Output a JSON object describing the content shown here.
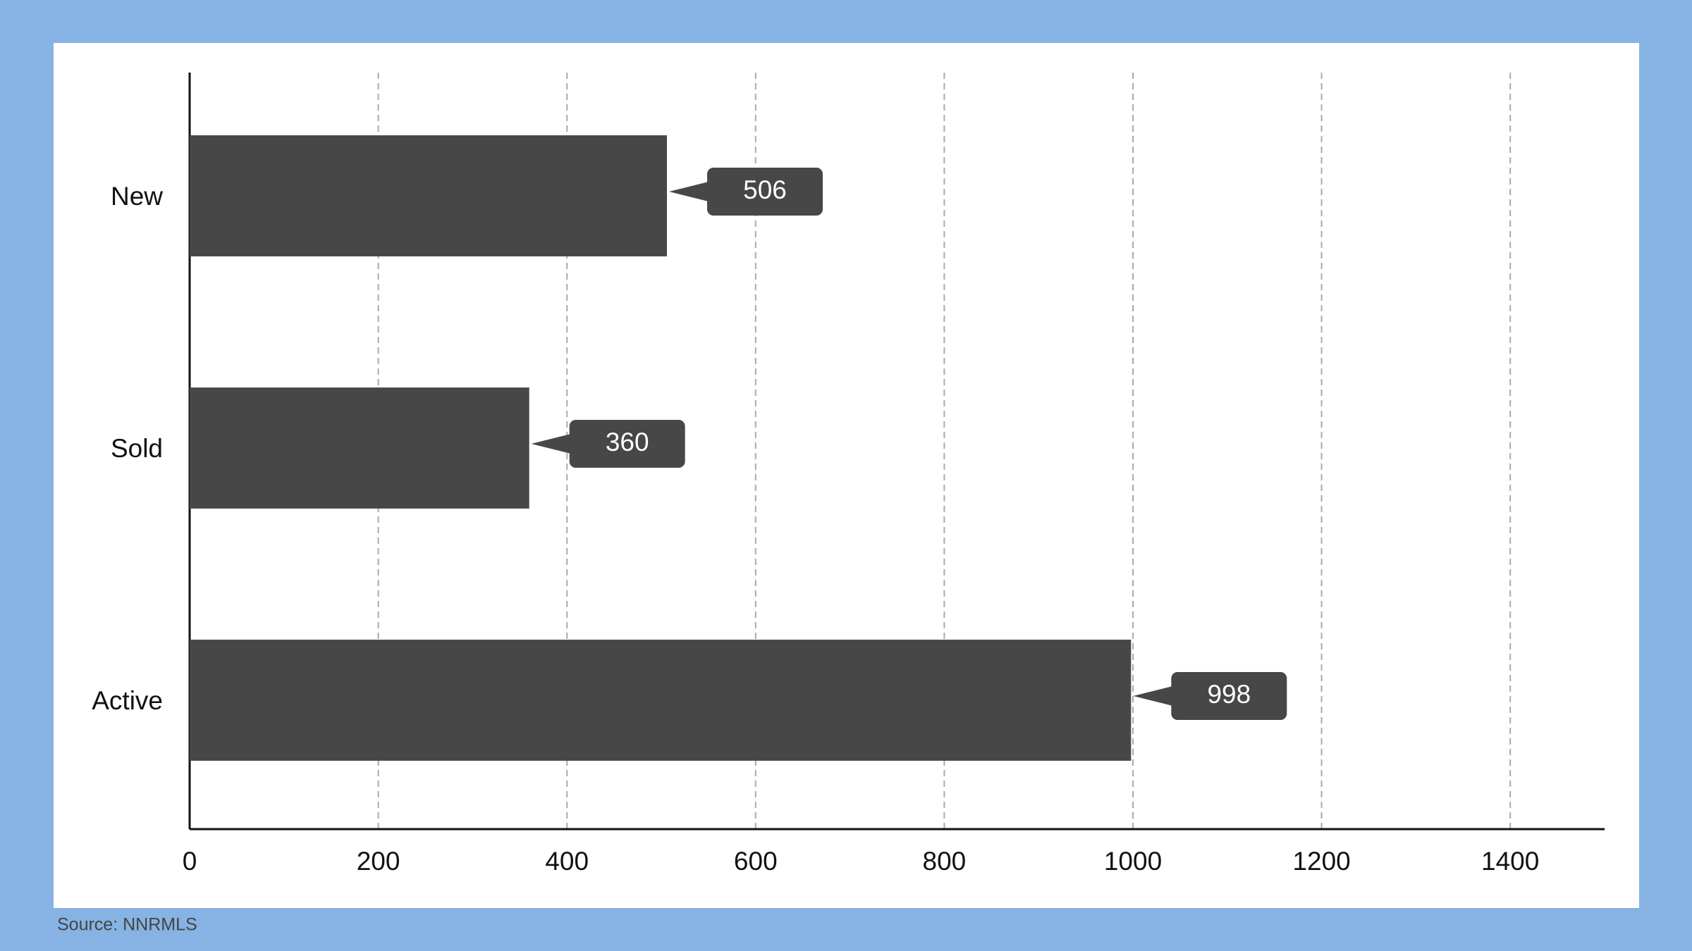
{
  "chart_data": {
    "type": "hbar",
    "categories": [
      "New",
      "Sold",
      "Active"
    ],
    "values": [
      506,
      360,
      998
    ],
    "color": "#474747",
    "xlim": [
      0,
      1500
    ],
    "xticks": [
      0,
      200,
      400,
      600,
      800,
      1000,
      1200,
      1400
    ],
    "grid": true,
    "source": "Source: NNRMLS"
  }
}
